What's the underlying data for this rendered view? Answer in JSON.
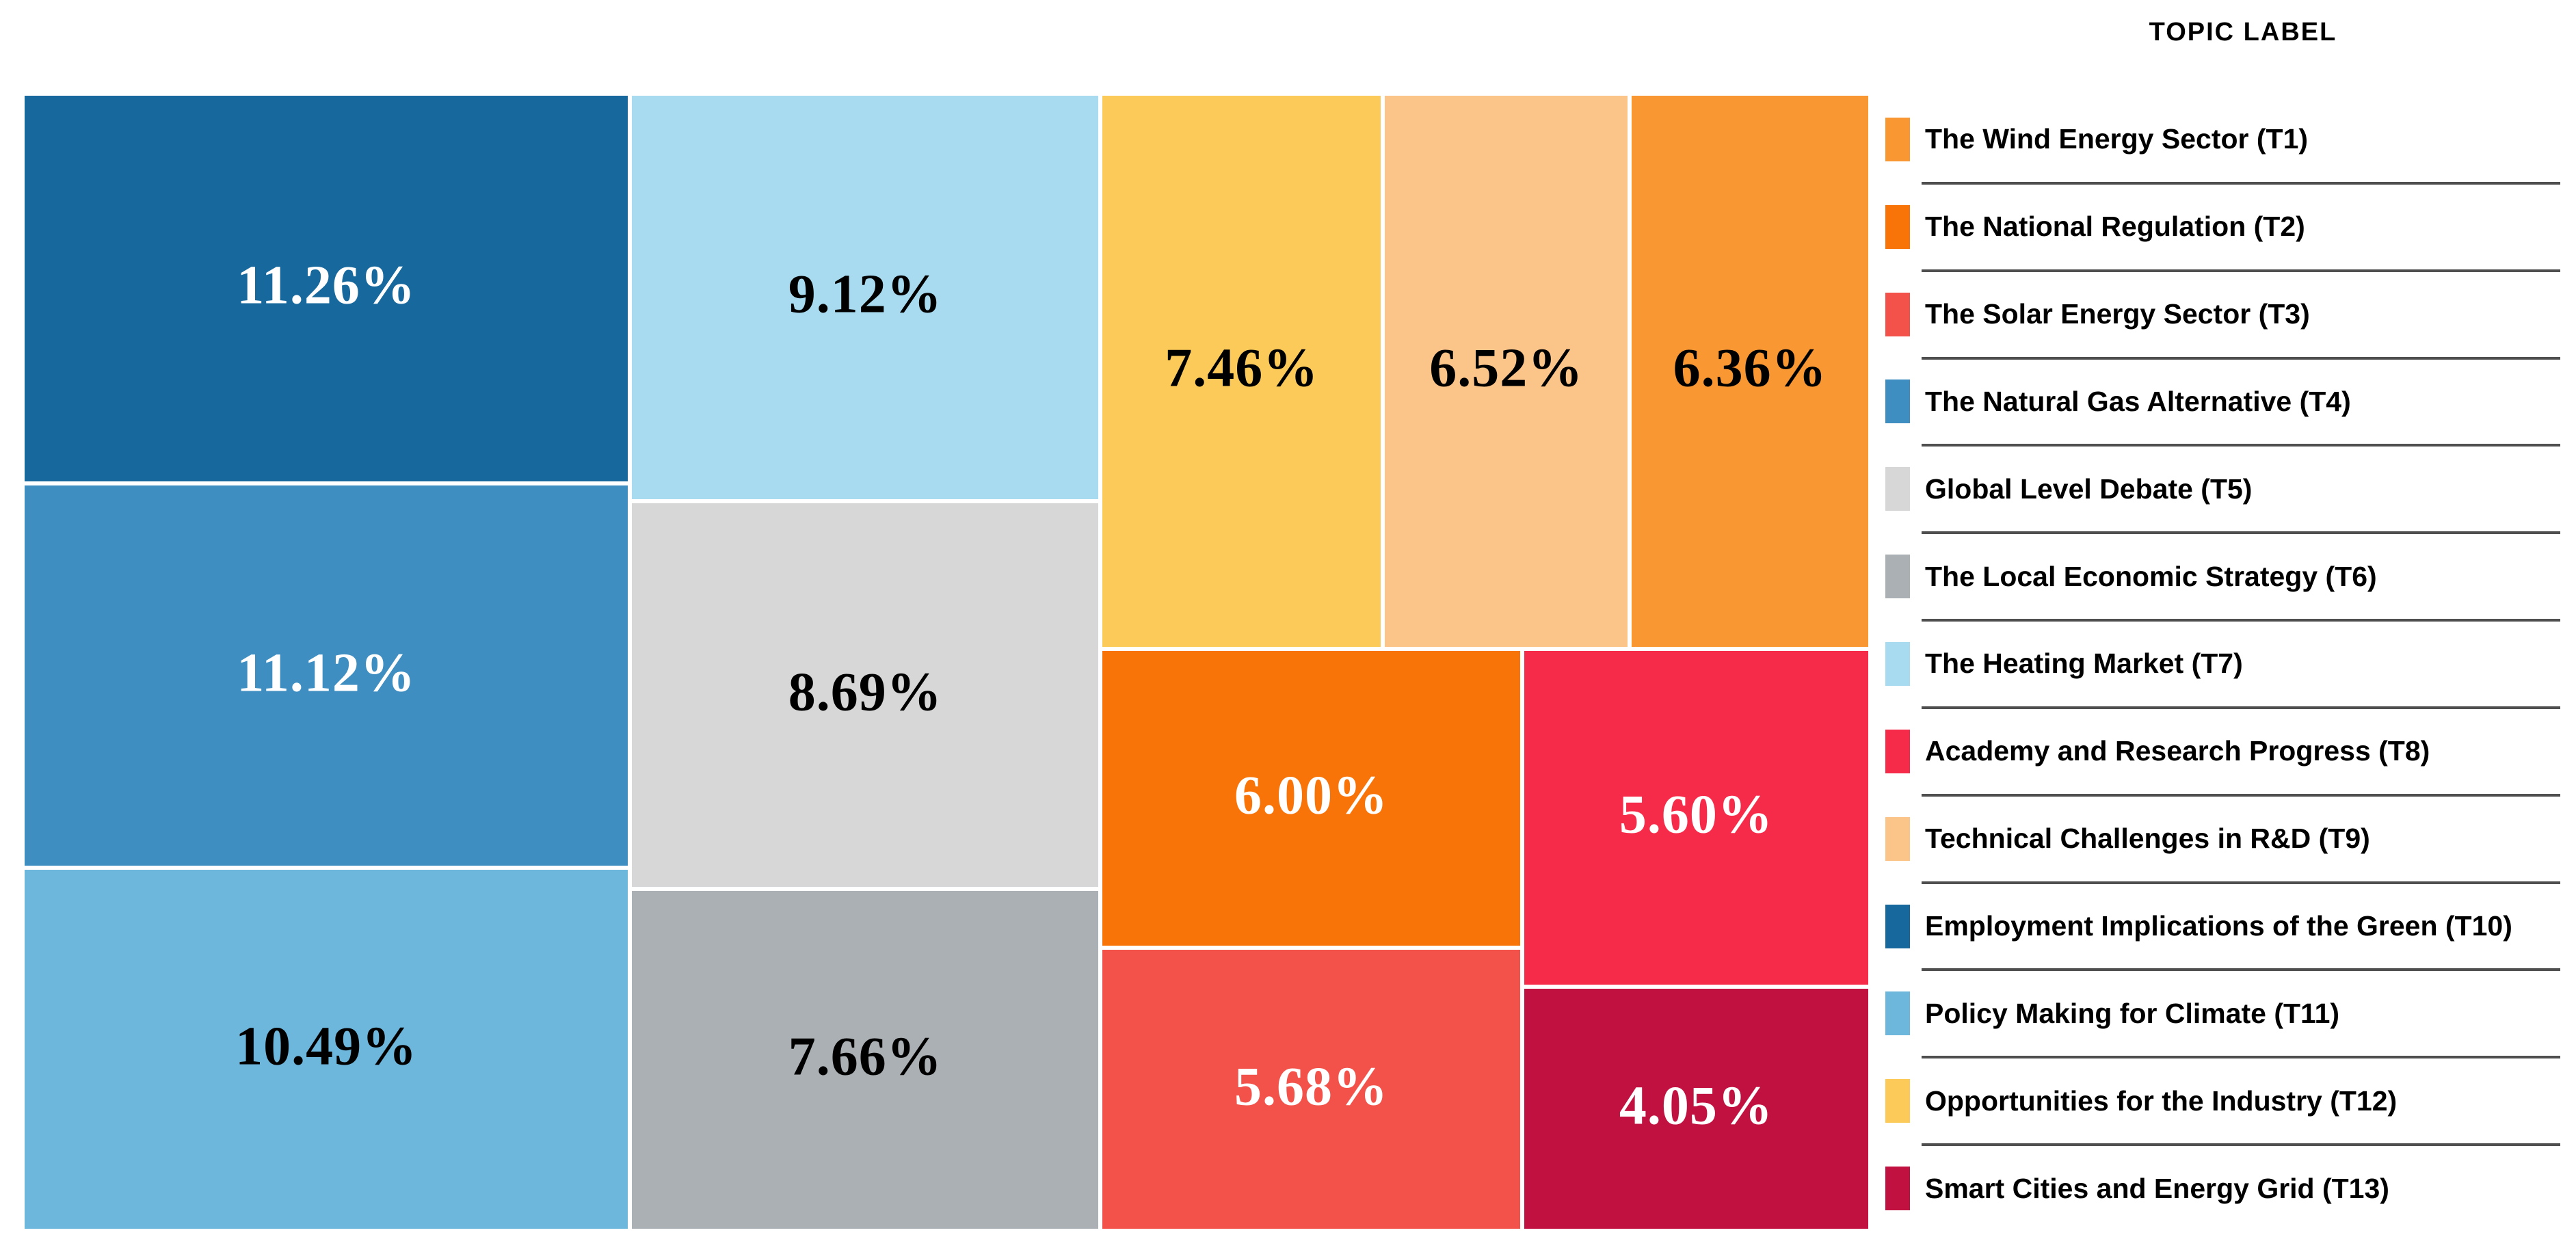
{
  "legend": {
    "title": "TOPIC LABEL",
    "items": [
      {
        "id": "T1",
        "label": "The Wind Energy Sector (T1)",
        "color": "#F99732"
      },
      {
        "id": "T2",
        "label": "The National Regulation (T2)",
        "color": "#F87409"
      },
      {
        "id": "T3",
        "label": "The Solar Energy Sector (T3)",
        "color": "#F2524A"
      },
      {
        "id": "T4",
        "label": "The Natural Gas Alternative (T4)",
        "color": "#3E8EC1"
      },
      {
        "id": "T5",
        "label": "Global Level Debate (T5)",
        "color": "#D7D7D7"
      },
      {
        "id": "T6",
        "label": "The Local Economic Strategy (T6)",
        "color": "#ABB0B5"
      },
      {
        "id": "T7",
        "label": "The Heating Market (T7)",
        "color": "#A8DBF0"
      },
      {
        "id": "T8",
        "label": "Academy and Research Progress (T8)",
        "color": "#F62B49"
      },
      {
        "id": "T9",
        "label": "Technical Challenges in R&D (T9)",
        "color": "#FBC489"
      },
      {
        "id": "T10",
        "label": "Employment Implications of the Green (T10)",
        "color": "#16689D"
      },
      {
        "id": "T11",
        "label": "Policy Making for Climate (T11)",
        "color": "#6DB6DC"
      },
      {
        "id": "T12",
        "label": "Opportunities for the Industry (T12)",
        "color": "#FCCA58"
      },
      {
        "id": "T13",
        "label": "Smart Cities and Energy Grid (T13)",
        "color": "#C11140"
      }
    ]
  },
  "chart_data": {
    "type": "treemap",
    "title": "TOPIC LABEL",
    "unit": "%",
    "legend_position": "right",
    "tiles": [
      {
        "id": "T10",
        "topic": "Employment Implications of the Green (T10)",
        "value": 11.26,
        "display": "11.26%",
        "color": "#16689D",
        "text_color": "#FFFFFF",
        "x": 0,
        "y": 0,
        "w": 32.87,
        "h": 34.26
      },
      {
        "id": "T4",
        "topic": "The Natural Gas Alternative (T4)",
        "value": 11.12,
        "display": "11.12%",
        "color": "#3E8EC1",
        "text_color": "#FFFFFF",
        "x": 0,
        "y": 34.26,
        "w": 32.87,
        "h": 33.83
      },
      {
        "id": "T11",
        "topic": "Policy Making for Climate (T11)",
        "value": 10.49,
        "display": "10.49%",
        "color": "#6DB6DC",
        "text_color": "#000000",
        "x": 0,
        "y": 68.09,
        "w": 32.87,
        "h": 31.91
      },
      {
        "id": "T7",
        "topic": "The Heating Market (T7)",
        "value": 9.12,
        "display": "9.12%",
        "color": "#A8DBF0",
        "text_color": "#000000",
        "x": 32.87,
        "y": 0,
        "w": 25.47,
        "h": 35.81
      },
      {
        "id": "T5",
        "topic": "Global Level Debate (T5)",
        "value": 8.69,
        "display": "8.69%",
        "color": "#D7D7D7",
        "text_color": "#000000",
        "x": 32.87,
        "y": 35.81,
        "w": 25.47,
        "h": 34.12
      },
      {
        "id": "T6",
        "topic": "The Local Economic Strategy (T6)",
        "value": 7.66,
        "display": "7.66%",
        "color": "#ABB0B5",
        "text_color": "#000000",
        "x": 32.87,
        "y": 69.93,
        "w": 25.47,
        "h": 30.07
      },
      {
        "id": "T12",
        "topic": "Opportunities for the Industry (T12)",
        "value": 7.46,
        "display": "7.46%",
        "color": "#FCCA58",
        "text_color": "#000000",
        "x": 58.34,
        "y": 0,
        "w": 15.28,
        "h": 48.81
      },
      {
        "id": "T9",
        "topic": "Technical Challenges in R&D (T9)",
        "value": 6.52,
        "display": "6.52%",
        "color": "#FBC489",
        "text_color": "#000000",
        "x": 73.62,
        "y": 0,
        "w": 13.36,
        "h": 48.81
      },
      {
        "id": "T1",
        "topic": "The Wind Energy Sector (T1)",
        "value": 6.36,
        "display": "6.36%",
        "color": "#F99732",
        "text_color": "#000000",
        "x": 86.98,
        "y": 0,
        "w": 13.02,
        "h": 48.81
      },
      {
        "id": "T2",
        "topic": "The National Regulation (T2)",
        "value": 6.0,
        "display": "6.00%",
        "color": "#F87409",
        "text_color": "#FFFFFF",
        "x": 58.34,
        "y": 48.81,
        "w": 22.81,
        "h": 26.3
      },
      {
        "id": "T3",
        "topic": "The Solar Energy Sector (T3)",
        "value": 5.68,
        "display": "5.68%",
        "color": "#F2524A",
        "text_color": "#FFFFFF",
        "x": 58.34,
        "y": 75.11,
        "w": 22.81,
        "h": 24.89
      },
      {
        "id": "T8",
        "topic": "Academy and Research Progress (T8)",
        "value": 5.6,
        "display": "5.60%",
        "color": "#F62B49",
        "text_color": "#FFFFFF",
        "x": 81.15,
        "y": 48.81,
        "w": 18.85,
        "h": 29.71
      },
      {
        "id": "T13",
        "topic": "Smart Cities and Energy Grid (T13)",
        "value": 4.05,
        "display": "4.05%",
        "color": "#C11140",
        "text_color": "#FFFFFF",
        "x": 81.15,
        "y": 78.52,
        "w": 18.85,
        "h": 21.48
      }
    ]
  }
}
